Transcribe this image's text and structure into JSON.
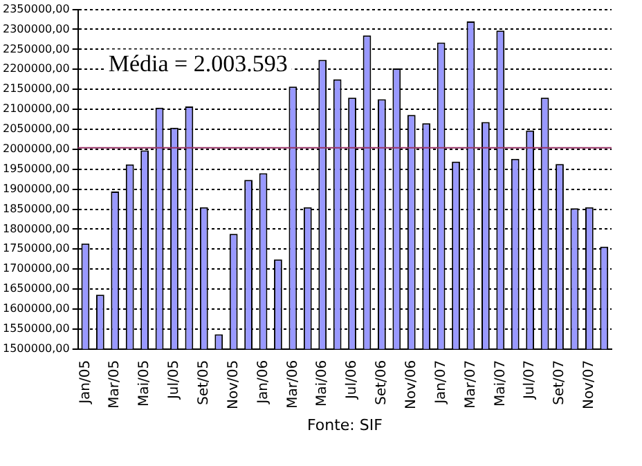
{
  "chart_data": {
    "type": "bar",
    "categories": [
      "Jan/05",
      null,
      "Mar/05",
      null,
      "Mai/05",
      null,
      "Jul/05",
      null,
      "Set/05",
      null,
      "Nov/05",
      null,
      "Jan/06",
      null,
      "Mar/06",
      null,
      "Mai/06",
      null,
      "Jul/06",
      null,
      "Set/06",
      null,
      "Nov/06",
      null,
      "Jan/07",
      null,
      "Mar/07",
      null,
      "Mai/07",
      null,
      "Jul/07",
      null,
      "Set/07",
      null,
      "Nov/07",
      null
    ],
    "values": [
      1764000,
      1636000,
      1894000,
      1962000,
      1997000,
      2104000,
      2054000,
      2107000,
      1855000,
      1537000,
      1788000,
      1923000,
      1940000,
      1724000,
      2157000,
      1855000,
      2224000,
      2175000,
      2129000,
      2285000,
      2125000,
      2202000,
      2086000,
      2065000,
      2267000,
      1969000,
      2320000,
      2068000,
      2297000,
      1976000,
      2047000,
      2129000,
      1963000,
      1852000,
      1855000,
      1756000
    ],
    "color": "#9999ff",
    "ylim": [
      1500000,
      2350000
    ],
    "yticks": [
      {
        "value": 1500000,
        "label": "1500000,00"
      },
      {
        "value": 1550000,
        "label": "1550000,00"
      },
      {
        "value": 1600000,
        "label": "1600000,00"
      },
      {
        "value": 1650000,
        "label": "1650000,00"
      },
      {
        "value": 1700000,
        "label": "1700000,00"
      },
      {
        "value": 1750000,
        "label": "1750000,00"
      },
      {
        "value": 1800000,
        "label": "1800000,00"
      },
      {
        "value": 1850000,
        "label": "1850000,00"
      },
      {
        "value": 1900000,
        "label": "1900000,00"
      },
      {
        "value": 1950000,
        "label": "1950000,00"
      },
      {
        "value": 2000000,
        "label": "2000000,00"
      },
      {
        "value": 2050000,
        "label": "2050000,00"
      },
      {
        "value": 2100000,
        "label": "2100000,00"
      },
      {
        "value": 2150000,
        "label": "2150000,00"
      },
      {
        "value": 2200000,
        "label": "2200000,00"
      },
      {
        "value": 2250000,
        "label": "2250000,00"
      },
      {
        "value": 2300000,
        "label": "2300000,00"
      },
      {
        "value": 2350000,
        "label": "2350000,00"
      }
    ],
    "grid": "y",
    "ref_lines": [
      {
        "axis": "y",
        "value": 2003593,
        "color": "#993366"
      }
    ],
    "annotations": [
      "Média = 2.003.593",
      "Fonte: SIF"
    ]
  }
}
